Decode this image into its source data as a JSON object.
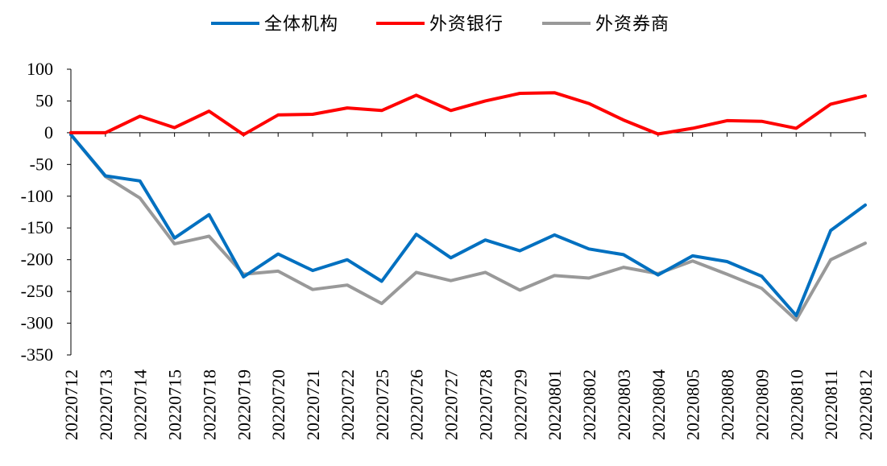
{
  "chart_data": {
    "type": "line",
    "x": [
      "20220712",
      "20220713",
      "20220714",
      "20220715",
      "20220718",
      "20220719",
      "20220720",
      "20220721",
      "20220722",
      "20220725",
      "20220726",
      "20220727",
      "20220728",
      "20220729",
      "20220801",
      "20220802",
      "20220803",
      "20220804",
      "20220805",
      "20220808",
      "20220809",
      "20220810",
      "20220811",
      "20220812"
    ],
    "series": [
      {
        "name": "全体机构",
        "color": "#0070C0",
        "values": [
          -3,
          -68,
          -76,
          -166,
          -129,
          -227,
          -191,
          -217,
          -200,
          -234,
          -160,
          -197,
          -169,
          -186,
          -161,
          -183,
          -192,
          -224,
          -194,
          -203,
          -226,
          -288,
          -154,
          -114
        ]
      },
      {
        "name": "外资银行",
        "color": "#FF0000",
        "values": [
          0,
          0,
          26,
          8,
          34,
          -3,
          28,
          29,
          39,
          35,
          59,
          35,
          50,
          62,
          63,
          46,
          20,
          -2,
          7,
          19,
          18,
          7,
          45,
          58
        ]
      },
      {
        "name": "外资券商",
        "color": "#999999",
        "values": [
          -3,
          -69,
          -103,
          -175,
          -163,
          -223,
          -218,
          -247,
          -240,
          -269,
          -220,
          -233,
          -220,
          -248,
          -225,
          -229,
          -212,
          -222,
          -202,
          -223,
          -245,
          -295,
          -200,
          -174
        ]
      }
    ],
    "ylim": [
      -350,
      100
    ],
    "yticks": [
      "100",
      "50",
      "0",
      "-50",
      "-100",
      "-150",
      "-200",
      "-250",
      "-300",
      "-350"
    ],
    "legend_position": "top-center",
    "grid": false
  }
}
